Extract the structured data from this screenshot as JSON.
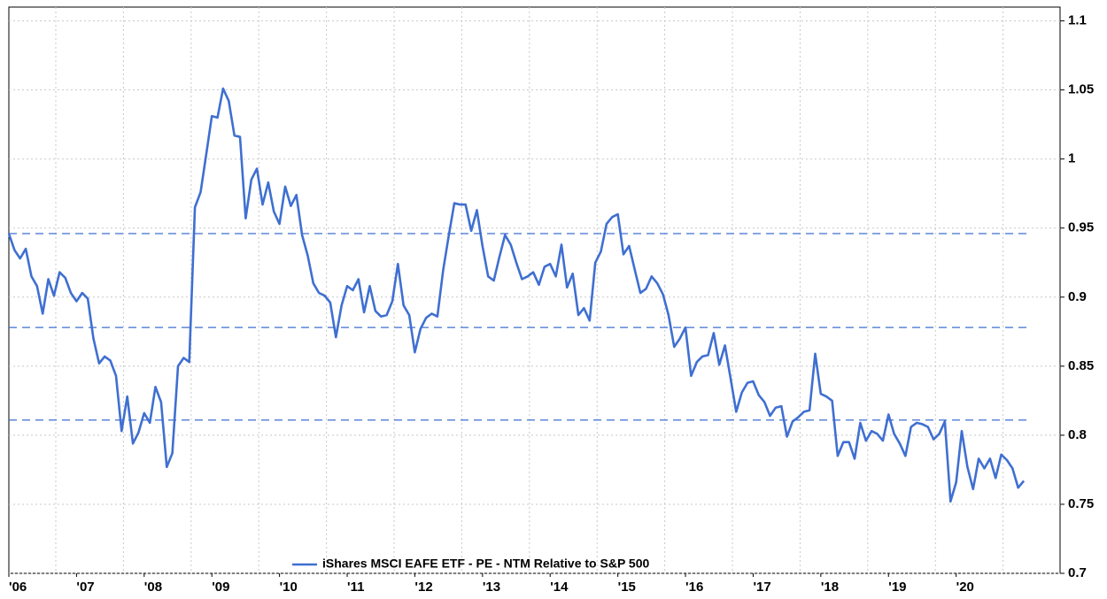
{
  "chart_data": {
    "type": "line",
    "categories": [
      "'06",
      null,
      null,
      null,
      null,
      null,
      null,
      null,
      null,
      null,
      null,
      null,
      "'07",
      null,
      null,
      null,
      null,
      null,
      null,
      null,
      null,
      null,
      null,
      null,
      "'08",
      null,
      null,
      null,
      null,
      null,
      null,
      null,
      null,
      null,
      null,
      null,
      "'09",
      null,
      null,
      null,
      null,
      null,
      null,
      null,
      null,
      null,
      null,
      null,
      "'10",
      null,
      null,
      null,
      null,
      null,
      null,
      null,
      null,
      null,
      null,
      null,
      "'11",
      null,
      null,
      null,
      null,
      null,
      null,
      null,
      null,
      null,
      null,
      null,
      "'12",
      null,
      null,
      null,
      null,
      null,
      null,
      null,
      null,
      null,
      null,
      null,
      "'13",
      null,
      null,
      null,
      null,
      null,
      null,
      null,
      null,
      null,
      null,
      null,
      "'14",
      null,
      null,
      null,
      null,
      null,
      null,
      null,
      null,
      null,
      null,
      null,
      "'15",
      null,
      null,
      null,
      null,
      null,
      null,
      null,
      null,
      null,
      null,
      null,
      "'16",
      null,
      null,
      null,
      null,
      null,
      null,
      null,
      null,
      null,
      null,
      null,
      "'17",
      null,
      null,
      null,
      null,
      null,
      null,
      null,
      null,
      null,
      null,
      null,
      "'18",
      null,
      null,
      null,
      null,
      null,
      null,
      null,
      null,
      null,
      null,
      null,
      "'19",
      null,
      null,
      null,
      null,
      null,
      null,
      null,
      null,
      null,
      null,
      null,
      "'20",
      null,
      null,
      null,
      null,
      null,
      null,
      null,
      null,
      null,
      null,
      null,
      null
    ],
    "series": [
      {
        "name": "iShares MSCI EAFE ETF - PE - NTM Relative to S&P 500",
        "color": "#3f6fd1",
        "values": [
          0.946,
          0.934,
          0.928,
          0.935,
          0.915,
          0.908,
          0.888,
          0.913,
          0.901,
          0.918,
          0.914,
          0.903,
          0.897,
          0.903,
          0.899,
          0.87,
          0.852,
          0.857,
          0.854,
          0.843,
          0.803,
          0.828,
          0.794,
          0.802,
          0.816,
          0.809,
          0.835,
          0.824,
          0.777,
          0.787,
          0.85,
          0.856,
          0.853,
          0.965,
          0.976,
          1.003,
          1.031,
          1.03,
          1.051,
          1.042,
          1.017,
          1.016,
          0.957,
          0.985,
          0.993,
          0.967,
          0.983,
          0.962,
          0.953,
          0.98,
          0.966,
          0.974,
          0.945,
          0.93,
          0.91,
          0.903,
          0.901,
          0.896,
          0.871,
          0.894,
          0.908,
          0.905,
          0.913,
          0.889,
          0.908,
          0.89,
          0.886,
          0.887,
          0.897,
          0.924,
          0.894,
          0.887,
          0.86,
          0.877,
          0.885,
          0.888,
          0.886,
          0.919,
          0.944,
          0.968,
          0.967,
          0.967,
          0.948,
          0.963,
          0.937,
          0.915,
          0.912,
          0.929,
          0.945,
          0.938,
          0.925,
          0.913,
          0.915,
          0.918,
          0.909,
          0.922,
          0.924,
          0.915,
          0.938,
          0.907,
          0.917,
          0.887,
          0.892,
          0.883,
          0.925,
          0.933,
          0.953,
          0.958,
          0.96,
          0.931,
          0.937,
          0.92,
          0.903,
          0.906,
          0.915,
          0.91,
          0.902,
          0.887,
          0.864,
          0.87,
          0.878,
          0.843,
          0.853,
          0.857,
          0.858,
          0.874,
          0.851,
          0.865,
          0.841,
          0.817,
          0.831,
          0.838,
          0.839,
          0.829,
          0.824,
          0.814,
          0.82,
          0.821,
          0.799,
          0.81,
          0.813,
          0.817,
          0.818,
          0.859,
          0.83,
          0.828,
          0.825,
          0.785,
          0.795,
          0.795,
          0.783,
          0.809,
          0.796,
          0.803,
          0.801,
          0.796,
          0.815,
          0.801,
          0.794,
          0.785,
          0.806,
          0.809,
          0.808,
          0.806,
          0.797,
          0.801,
          0.81,
          0.752,
          0.766,
          0.803,
          0.777,
          0.761,
          0.783,
          0.776,
          0.783,
          0.769,
          0.786,
          0.782,
          0.776,
          0.762,
          0.767
        ]
      }
    ],
    "hlines": [
      0.946,
      0.878,
      0.811
    ],
    "ylim": [
      0.7,
      1.11
    ],
    "yticks": [
      0.7,
      0.75,
      0.8,
      0.85,
      0.9,
      0.95,
      1,
      1.05,
      1.1
    ],
    "grid": true,
    "legend": "bottom"
  }
}
